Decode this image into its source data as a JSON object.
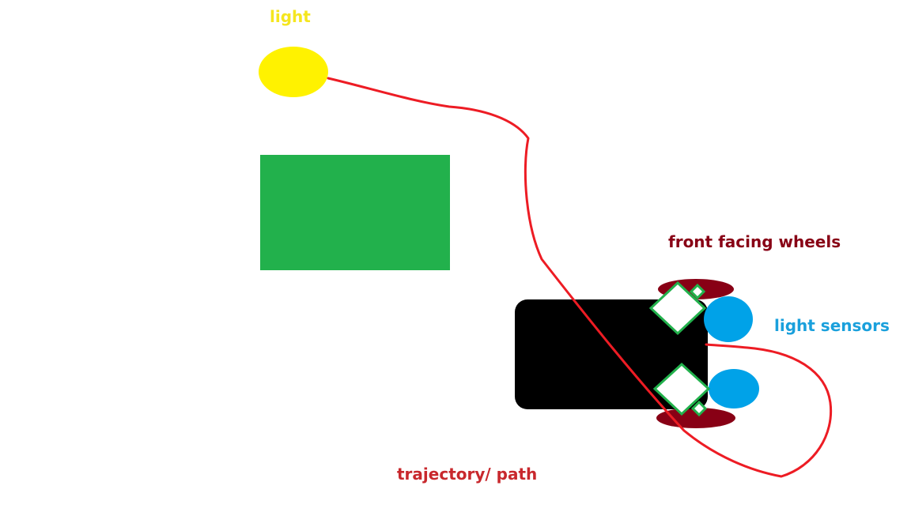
{
  "labels": {
    "light": "light",
    "front_facing_wheels": "front facing wheels",
    "light_sensors": "light sensors",
    "trajectory": "trajectory/ path"
  },
  "colors": {
    "light": "#fff200",
    "light_label": "#f5e61e",
    "obstacle": "#22b14c",
    "robot_body": "#000000",
    "wheel": "#880015",
    "wheel_label": "#880015",
    "sensor": "#00a2e8",
    "sensor_label": "#1aa0dc",
    "diamond_outline": "#22b14c",
    "path": "#ed1c24",
    "path_label": "#c8282d"
  }
}
